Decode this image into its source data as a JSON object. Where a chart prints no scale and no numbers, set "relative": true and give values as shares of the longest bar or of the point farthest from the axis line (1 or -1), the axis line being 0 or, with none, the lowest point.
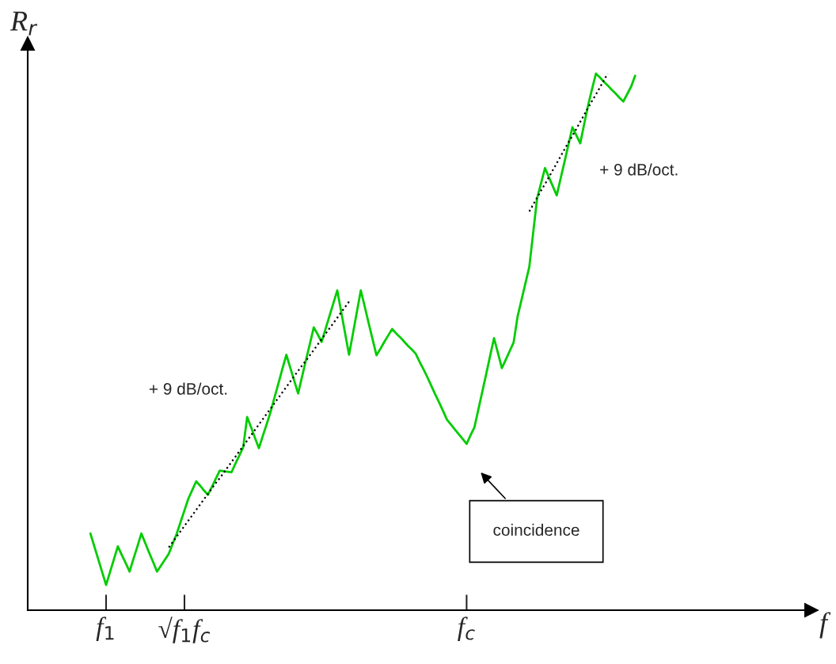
{
  "chart_data": {
    "type": "line",
    "relative": true,
    "xlabel": "f",
    "ylabel": "R$_{r}$",
    "categories": [
      null,
      null,
      null,
      null,
      null,
      null,
      null,
      null,
      null,
      null,
      null,
      null,
      null,
      null,
      null,
      null,
      null,
      null,
      null,
      null,
      "f$_{1}$",
      null,
      null,
      null,
      null,
      null,
      null,
      null,
      null,
      null,
      null,
      null,
      null,
      null,
      null,
      null,
      null,
      null,
      null,
      null,
      "√f$_{1}$f$_{c}$",
      null,
      null,
      null,
      null,
      null,
      null,
      null,
      null,
      null,
      null,
      null,
      null,
      null,
      null,
      null,
      null,
      null,
      null,
      null,
      null,
      null,
      null,
      null,
      null,
      null,
      null,
      null,
      null,
      null,
      null,
      null,
      null,
      null,
      null,
      null,
      null,
      null,
      null,
      null,
      null,
      null,
      null,
      null,
      null,
      null,
      null,
      null,
      null,
      null,
      null,
      null,
      null,
      null,
      null,
      null,
      null,
      null,
      null,
      null,
      null,
      null,
      null,
      null,
      null,
      null,
      null,
      null,
      null,
      null,
      null,
      null,
      "f$_{c}$",
      null,
      null,
      null,
      null,
      null,
      null,
      null,
      null,
      null,
      null,
      null,
      null,
      null,
      null,
      null,
      null,
      null,
      null,
      null,
      null,
      null,
      null,
      null,
      null,
      null,
      null,
      null,
      null,
      null,
      null,
      null,
      null,
      null,
      null,
      null,
      null,
      null,
      null,
      null,
      null,
      null,
      null,
      null,
      null,
      null,
      null,
      null,
      null,
      null,
      null,
      null,
      null,
      null,
      null,
      null,
      null,
      null,
      null,
      null,
      null,
      null,
      null,
      null,
      null,
      null,
      null,
      null,
      null,
      null,
      null,
      null,
      null,
      null,
      null,
      null,
      null,
      null,
      null,
      null,
      null,
      null,
      null,
      null,
      null,
      null,
      null,
      null
    ],
    "grid": false,
    "legend": false,
    "tick_labels": "x",
    "series": [
      {
        "color": "#00cc00",
        "line_style": "solid",
        "values": [
          null,
          null,
          null,
          null,
          null,
          null,
          null,
          null,
          null,
          null,
          null,
          null,
          null,
          null,
          null,
          null,
          0.143,
          0.119,
          0.095,
          0.071,
          0.047,
          0.071,
          0.095,
          0.119,
          0.103,
          0.088,
          0.072,
          0.096,
          0.119,
          0.143,
          0.125,
          0.107,
          0.09,
          0.072,
          0.083,
          0.094,
          0.105,
          0.124,
          0.142,
          0.164,
          0.186,
          0.208,
          0.224,
          0.24,
          0.232,
          0.223,
          0.215,
          0.23,
          0.245,
          0.26,
          0.259,
          0.258,
          0.257,
          0.273,
          0.288,
          0.304,
          0.36,
          0.341,
          0.321,
          0.302,
          0.325,
          0.347,
          0.37,
          0.397,
          0.423,
          0.45,
          0.476,
          0.452,
          0.428,
          0.404,
          0.435,
          0.466,
          0.496,
          0.527,
          0.514,
          0.5,
          0.524,
          0.548,
          0.572,
          0.596,
          0.556,
          0.516,
          0.476,
          0.516,
          0.556,
          0.596,
          0.566,
          0.535,
          0.505,
          0.475,
          0.487,
          0.5,
          0.512,
          0.524,
          0.516,
          0.509,
          0.501,
          0.493,
          0.486,
          0.478,
          0.463,
          0.449,
          0.434,
          0.418,
          0.402,
          0.387,
          0.371,
          0.355,
          0.346,
          0.337,
          0.328,
          0.319,
          0.31,
          0.326,
          0.341,
          0.374,
          0.407,
          0.44,
          0.474,
          0.507,
          0.479,
          0.451,
          0.467,
          0.483,
          0.499,
          0.547,
          0.578,
          0.609,
          0.64,
          0.704,
          0.768,
          0.796,
          0.824,
          0.807,
          0.79,
          0.773,
          0.805,
          0.836,
          0.868,
          0.9,
          0.885,
          0.87,
          0.906,
          0.941,
          0.971,
          1.0,
          0.993,
          0.985,
          0.978,
          0.97,
          0.963,
          0.955,
          0.948,
          0.962,
          0.976,
          0.996,
          null,
          null,
          null,
          null,
          null,
          null,
          null,
          null,
          null,
          null,
          null,
          null,
          null,
          null,
          null,
          null,
          null,
          null,
          null,
          null,
          null,
          null,
          null,
          null,
          null,
          null,
          null,
          null,
          null,
          null,
          null,
          null,
          null,
          null,
          null,
          null,
          null,
          null,
          null,
          null,
          null,
          null,
          null,
          null
        ]
      },
      {
        "color": "#000000",
        "line_style": "dotted",
        "values": [
          null,
          null,
          null,
          null,
          null,
          null,
          null,
          null,
          null,
          null,
          null,
          null,
          null,
          null,
          null,
          null,
          null,
          null,
          null,
          null,
          null,
          null,
          null,
          null,
          null,
          null,
          null,
          null,
          null,
          null,
          null,
          null,
          null,
          null,
          null,
          null,
          0.117,
          0.127,
          0.137,
          0.147,
          0.157,
          0.167,
          0.177,
          0.187,
          0.197,
          0.207,
          0.217,
          0.227,
          0.237,
          0.246,
          0.256,
          0.266,
          0.276,
          0.286,
          0.296,
          0.306,
          0.316,
          0.326,
          0.336,
          0.346,
          0.356,
          0.366,
          0.376,
          0.386,
          0.396,
          0.406,
          0.416,
          0.426,
          0.436,
          0.446,
          0.456,
          0.465,
          0.475,
          0.485,
          0.495,
          0.505,
          0.515,
          0.525,
          0.535,
          0.545,
          0.555,
          0.565,
          0.575,
          null,
          null,
          null,
          null,
          null,
          null,
          null,
          null,
          null,
          null,
          null,
          null,
          null,
          null,
          null,
          null,
          null,
          null,
          null,
          null,
          null,
          null,
          null,
          null,
          null,
          null,
          null,
          null,
          null,
          null,
          null,
          null,
          null,
          null,
          null,
          null,
          null,
          null,
          null,
          null,
          null,
          null,
          null,
          null,
          null,
          null,
          null,
          null,
          null,
          null,
          null,
          null,
          null,
          null,
          null,
          null,
          null,
          null,
          null,
          null,
          null,
          null,
          null,
          null,
          null,
          null,
          null,
          null,
          null,
          null,
          null,
          null,
          null,
          null,
          null,
          null,
          null,
          null,
          null,
          null,
          null,
          null,
          null,
          null,
          null,
          null,
          null,
          null,
          null,
          null,
          null,
          null,
          null,
          null,
          null,
          null,
          null,
          null,
          null,
          null,
          null,
          null,
          null,
          null,
          null,
          null,
          null,
          null,
          null,
          null,
          null,
          null,
          null,
          null,
          null,
          null,
          null
        ]
      },
      {
        "color": "#000000",
        "line_style": "dotted",
        "values": [
          null,
          null,
          null,
          null,
          null,
          null,
          null,
          null,
          null,
          null,
          null,
          null,
          null,
          null,
          null,
          null,
          null,
          null,
          null,
          null,
          null,
          null,
          null,
          null,
          null,
          null,
          null,
          null,
          null,
          null,
          null,
          null,
          null,
          null,
          null,
          null,
          null,
          null,
          null,
          null,
          null,
          null,
          null,
          null,
          null,
          null,
          null,
          null,
          null,
          null,
          null,
          null,
          null,
          null,
          null,
          null,
          null,
          null,
          null,
          null,
          null,
          null,
          null,
          null,
          null,
          null,
          null,
          null,
          null,
          null,
          null,
          null,
          null,
          null,
          null,
          null,
          null,
          null,
          null,
          null,
          null,
          null,
          null,
          null,
          null,
          null,
          null,
          null,
          null,
          null,
          null,
          null,
          null,
          null,
          null,
          null,
          null,
          null,
          null,
          null,
          null,
          null,
          null,
          null,
          null,
          null,
          null,
          null,
          null,
          null,
          null,
          null,
          null,
          null,
          null,
          null,
          null,
          null,
          null,
          null,
          null,
          null,
          null,
          null,
          null,
          null,
          null,
          null,
          0.743,
          0.756,
          0.769,
          0.782,
          0.794,
          0.807,
          0.82,
          0.833,
          0.846,
          0.859,
          0.872,
          0.884,
          0.897,
          0.91,
          0.923,
          0.936,
          0.949,
          0.961,
          0.974,
          0.987,
          1.0,
          null,
          null,
          null,
          null,
          null,
          null,
          null,
          null,
          null,
          null,
          null,
          null,
          null,
          null,
          null,
          null,
          null,
          null,
          null,
          null,
          null,
          null,
          null,
          null,
          null,
          null,
          null,
          null,
          null,
          null,
          null,
          null,
          null,
          null,
          null,
          null,
          null,
          null,
          null,
          null,
          null,
          null,
          null,
          null,
          null,
          null,
          null,
          null,
          null,
          null,
          null
        ]
      }
    ],
    "annotations": [
      "+ 9 dB/oct.",
      "+ 9 dB/oct.",
      "coincidence"
    ]
  }
}
